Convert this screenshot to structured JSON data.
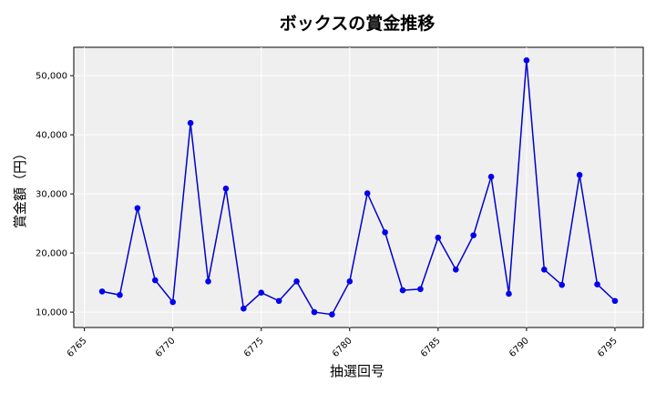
{
  "chart_data": {
    "type": "line",
    "title": "ボックスの賞金推移",
    "xlabel": "抽選回号",
    "ylabel": "賞金額（円）",
    "xlim": [
      6764.4,
      6796.6
    ],
    "ylim": [
      7400,
      54800
    ],
    "xticks": [
      6765,
      6770,
      6775,
      6780,
      6785,
      6790,
      6795
    ],
    "yticks": [
      10000,
      20000,
      30000,
      40000,
      50000
    ],
    "ytick_labels": [
      "10,000",
      "20,000",
      "30,000",
      "40,000",
      "50,000"
    ],
    "grid": true,
    "line_color": "#0000cc",
    "marker_color": "#0000ee",
    "plot_background": "#efefef",
    "series": [
      {
        "x": [
          6766,
          6767,
          6768,
          6769,
          6770,
          6771,
          6772,
          6773,
          6774,
          6775,
          6776,
          6777,
          6778,
          6779,
          6780,
          6781,
          6782,
          6783,
          6784,
          6785,
          6786,
          6787,
          6788,
          6789,
          6790,
          6791,
          6792,
          6793,
          6794,
          6795
        ],
        "values": [
          13500,
          12900,
          27600,
          15400,
          11700,
          42000,
          15200,
          30900,
          10600,
          13300,
          11900,
          15200,
          10000,
          9600,
          15200,
          30100,
          23500,
          13700,
          13900,
          22600,
          17200,
          23000,
          32900,
          13100,
          52600,
          17200,
          14600,
          33200,
          14700,
          11900
        ]
      }
    ]
  }
}
